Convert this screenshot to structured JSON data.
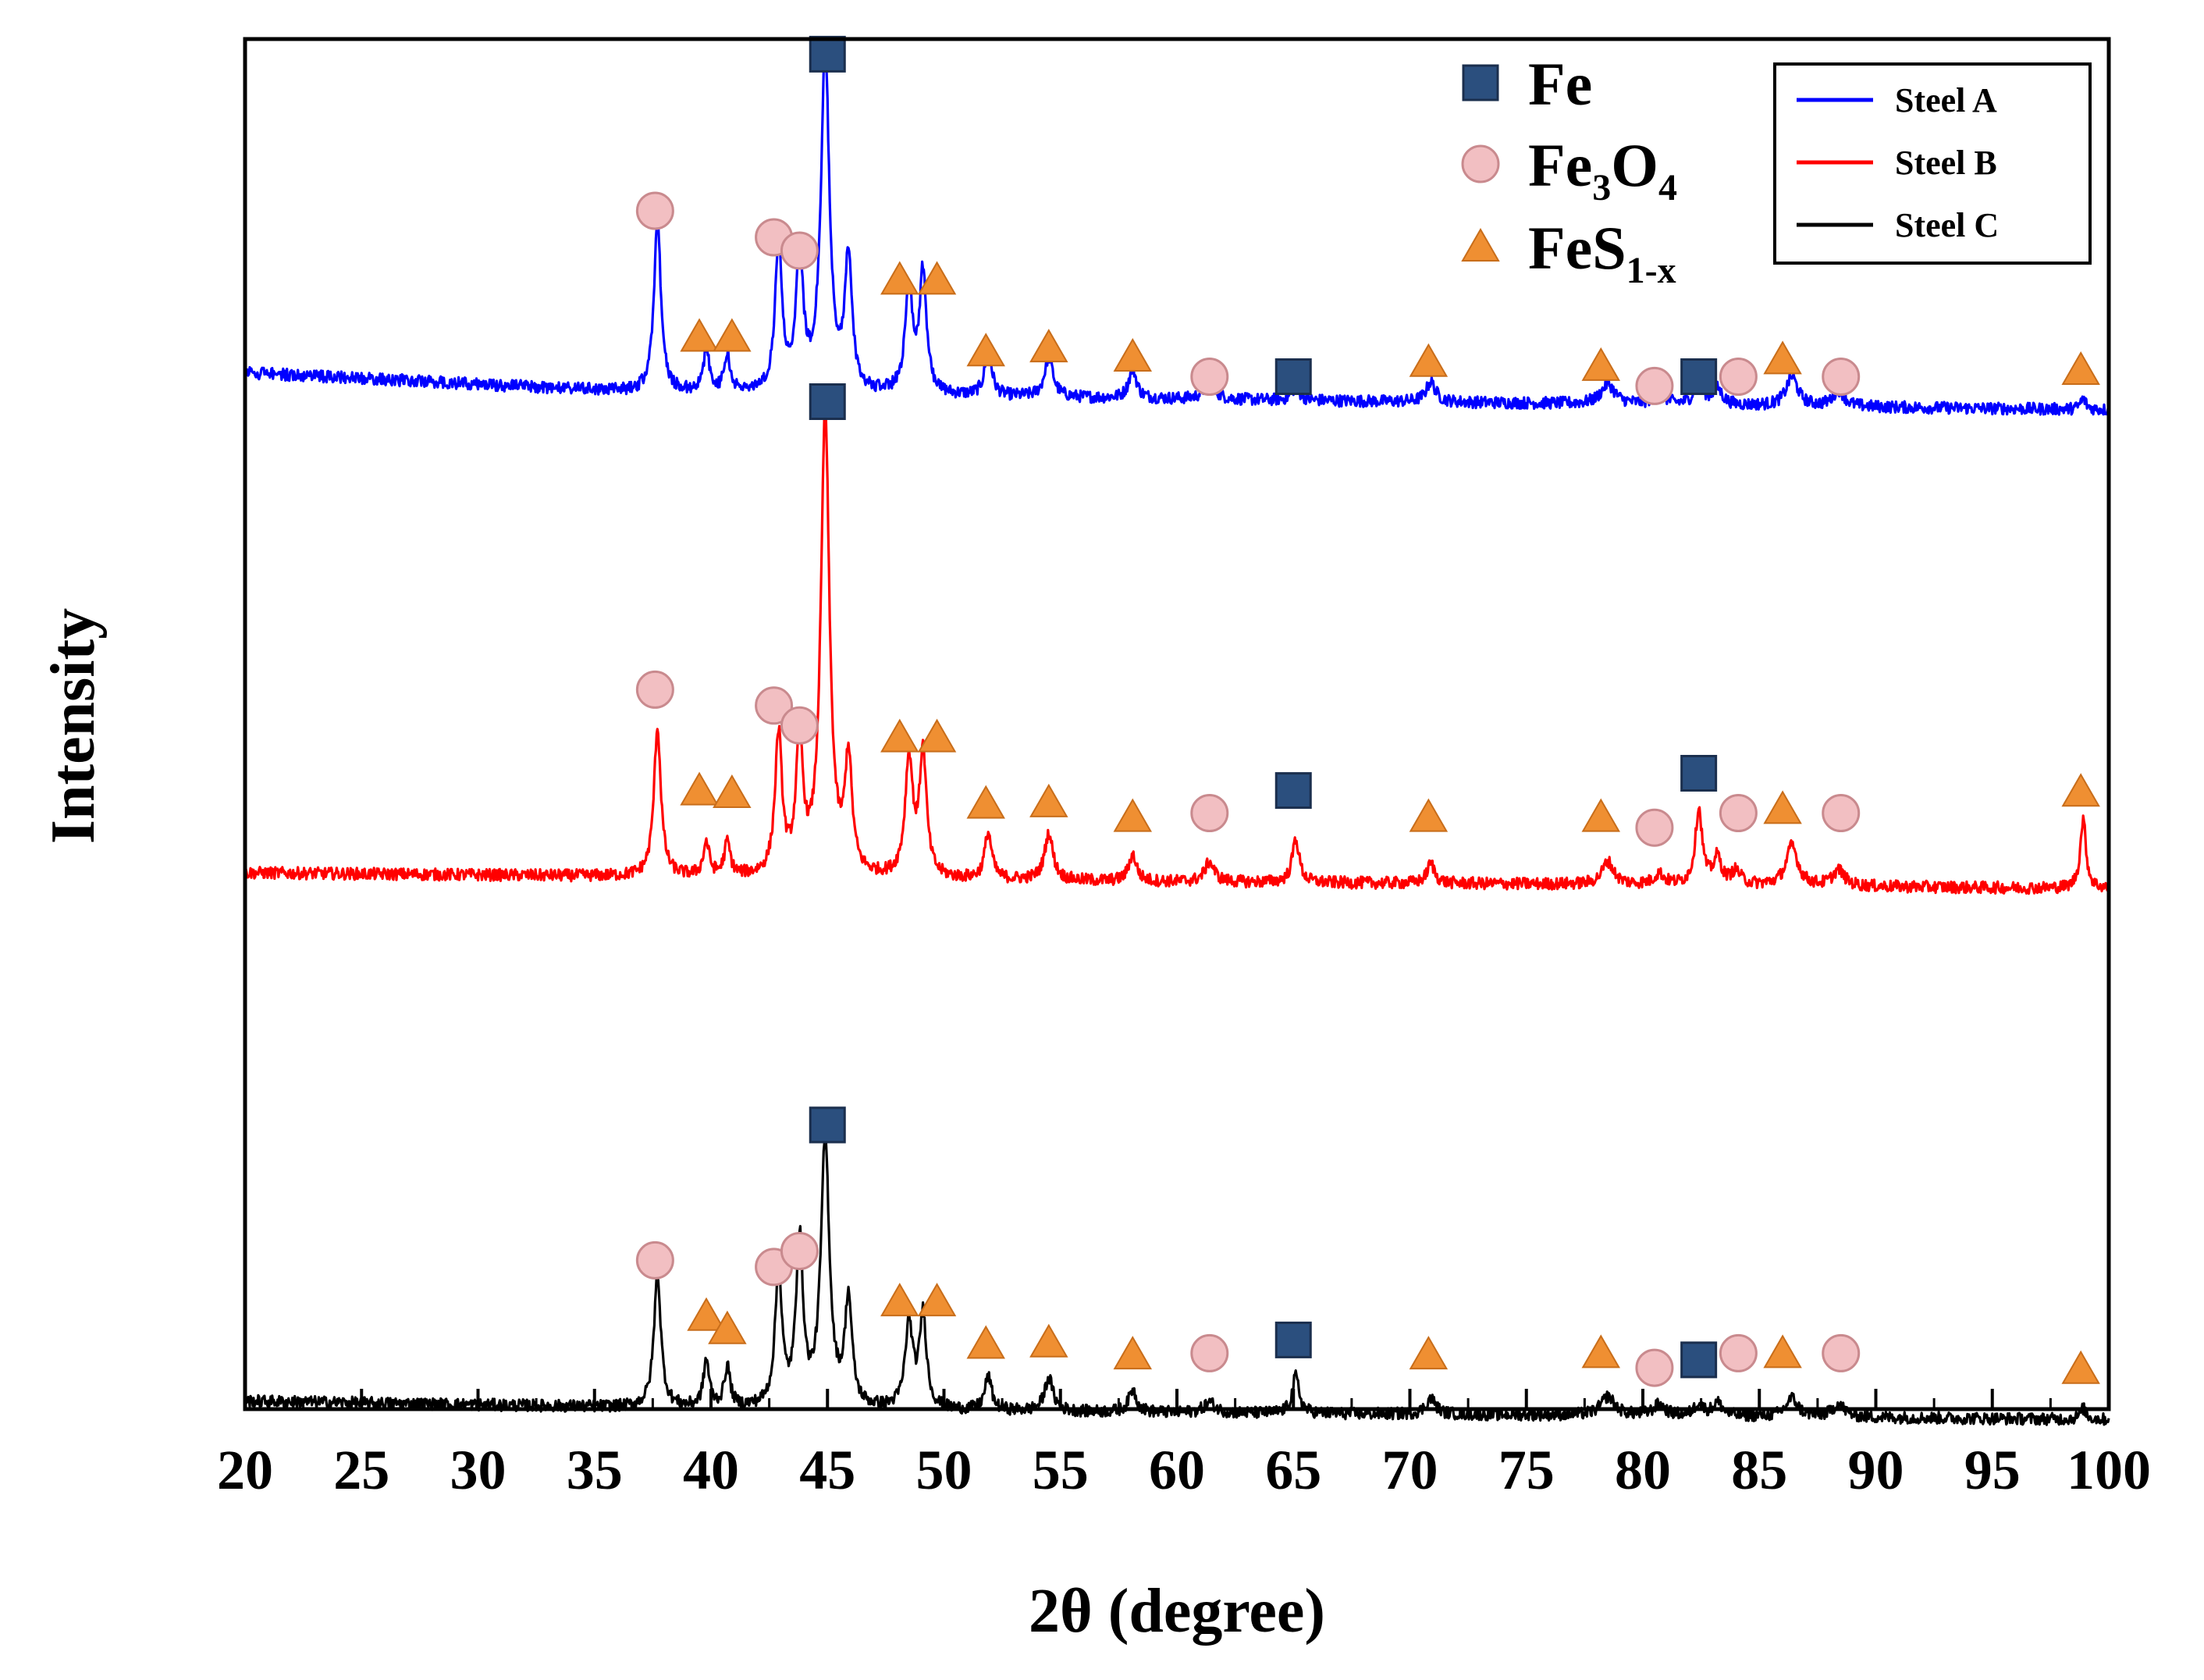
{
  "chart_data": {
    "type": "line",
    "title": "",
    "xlabel": "2θ (degree)",
    "ylabel": "Intensity",
    "xlim": [
      20,
      100
    ],
    "xticks": [
      20,
      25,
      30,
      35,
      40,
      45,
      50,
      55,
      60,
      65,
      70,
      75,
      80,
      85,
      90,
      95,
      100
    ],
    "yticks_shown": false,
    "legend_position": "top-right",
    "series": [
      {
        "name": "Steel A",
        "color": "#0000ff",
        "baseline": [
          [
            20,
            0.28
          ],
          [
            37,
            0.13
          ],
          [
            60,
            0.08
          ],
          [
            80,
            0.04
          ],
          [
            100,
            0.0
          ]
        ],
        "peaks": [
          [
            37.7,
            1.3,
            0.18
          ],
          [
            39.8,
            0.32,
            0.15
          ],
          [
            40.7,
            0.28,
            0.15
          ],
          [
            42.9,
            1.1,
            0.18
          ],
          [
            43.8,
            1.05,
            0.18
          ],
          [
            44.9,
            2.55,
            0.22
          ],
          [
            45.9,
            1.0,
            0.18
          ],
          [
            48.5,
            0.78,
            0.2
          ],
          [
            49.1,
            0.9,
            0.18
          ],
          [
            51.9,
            0.35,
            0.18
          ],
          [
            54.5,
            0.3,
            0.22
          ],
          [
            58.1,
            0.22,
            0.2
          ],
          [
            61.4,
            0.12,
            0.3
          ],
          [
            65.1,
            0.1,
            0.2
          ],
          [
            70.9,
            0.15,
            0.25
          ],
          [
            78.5,
            0.15,
            0.35
          ],
          [
            80.7,
            0.08,
            0.3
          ],
          [
            82.4,
            0.2,
            0.2
          ],
          [
            83.2,
            0.12,
            0.25
          ],
          [
            86.4,
            0.22,
            0.3
          ],
          [
            88.4,
            0.12,
            0.3
          ],
          [
            98.9,
            0.08,
            0.15
          ]
        ]
      },
      {
        "name": "Steel B",
        "color": "#ff0000",
        "baseline": [
          [
            20,
            0.1
          ],
          [
            37,
            0.07
          ],
          [
            60,
            0.03
          ],
          [
            80,
            0.01
          ],
          [
            100,
            -0.02
          ]
        ],
        "peaks": [
          [
            37.7,
            1.12,
            0.18
          ],
          [
            39.8,
            0.25,
            0.15
          ],
          [
            40.7,
            0.25,
            0.15
          ],
          [
            42.9,
            1.05,
            0.18
          ],
          [
            43.8,
            0.98,
            0.18
          ],
          [
            44.9,
            3.48,
            0.22
          ],
          [
            45.9,
            0.85,
            0.18
          ],
          [
            48.5,
            0.88,
            0.2
          ],
          [
            49.1,
            0.93,
            0.18
          ],
          [
            51.9,
            0.35,
            0.18
          ],
          [
            54.5,
            0.35,
            0.22
          ],
          [
            58.1,
            0.2,
            0.2
          ],
          [
            61.4,
            0.15,
            0.25
          ],
          [
            65.1,
            0.33,
            0.18
          ],
          [
            70.9,
            0.15,
            0.2
          ],
          [
            78.5,
            0.17,
            0.3
          ],
          [
            80.7,
            0.08,
            0.25
          ],
          [
            82.4,
            0.57,
            0.18
          ],
          [
            83.2,
            0.2,
            0.2
          ],
          [
            84.0,
            0.1,
            0.25
          ],
          [
            86.4,
            0.3,
            0.3
          ],
          [
            88.4,
            0.12,
            0.3
          ],
          [
            98.9,
            0.52,
            0.15
          ]
        ]
      },
      {
        "name": "Steel C",
        "color": "#000000",
        "baseline": [
          [
            20,
            0.12
          ],
          [
            37,
            0.07
          ],
          [
            60,
            0.03
          ],
          [
            80,
            0.01
          ],
          [
            100,
            -0.02
          ]
        ],
        "peaks": [
          [
            37.7,
            1.0,
            0.18
          ],
          [
            39.8,
            0.35,
            0.15
          ],
          [
            40.7,
            0.3,
            0.15
          ],
          [
            42.9,
            1.0,
            0.18
          ],
          [
            43.8,
            1.25,
            0.18
          ],
          [
            44.9,
            2.0,
            0.22
          ],
          [
            45.9,
            0.8,
            0.18
          ],
          [
            48.5,
            0.63,
            0.2
          ],
          [
            49.1,
            0.7,
            0.18
          ],
          [
            51.9,
            0.25,
            0.18
          ],
          [
            54.5,
            0.25,
            0.22
          ],
          [
            58.1,
            0.17,
            0.2
          ],
          [
            61.4,
            0.08,
            0.3
          ],
          [
            65.1,
            0.28,
            0.18
          ],
          [
            70.9,
            0.12,
            0.25
          ],
          [
            78.5,
            0.14,
            0.35
          ],
          [
            80.7,
            0.08,
            0.3
          ],
          [
            82.4,
            0.1,
            0.2
          ],
          [
            83.2,
            0.1,
            0.25
          ],
          [
            86.4,
            0.14,
            0.3
          ],
          [
            88.4,
            0.1,
            0.3
          ],
          [
            98.9,
            0.08,
            0.15
          ]
        ]
      }
    ],
    "phase_legend": [
      {
        "marker": "square",
        "label": "Fe",
        "color": "#2b4f7e"
      },
      {
        "marker": "circle",
        "label": "Fe",
        "sub1": "3",
        "mid": "O",
        "sub2": "4",
        "color": "#f2bfc2"
      },
      {
        "marker": "triangle",
        "label": "FeS",
        "sub1": "1-x",
        "color": "#ef8f32"
      }
    ],
    "peak_markers": [
      {
        "series": "Steel A",
        "phase": "Fe",
        "positions": [
          [
            45.0,
            2.68
          ],
          [
            65.0,
            0.25
          ],
          [
            82.4,
            0.25
          ]
        ]
      },
      {
        "series": "Steel A",
        "phase": "Fe3O4",
        "positions": [
          [
            37.6,
            1.5
          ],
          [
            42.7,
            1.3
          ],
          [
            43.8,
            1.2
          ],
          [
            61.4,
            0.25
          ],
          [
            80.5,
            0.18
          ],
          [
            84.1,
            0.25
          ],
          [
            88.5,
            0.25
          ]
        ]
      },
      {
        "series": "Steel A",
        "phase": "FeS1-x",
        "positions": [
          [
            39.5,
            0.55
          ],
          [
            40.9,
            0.55
          ],
          [
            48.1,
            0.98
          ],
          [
            49.7,
            0.98
          ],
          [
            51.8,
            0.44
          ],
          [
            54.5,
            0.47
          ],
          [
            58.1,
            0.4
          ],
          [
            70.8,
            0.36
          ],
          [
            78.2,
            0.33
          ],
          [
            86.0,
            0.38
          ],
          [
            98.8,
            0.3
          ]
        ]
      },
      {
        "series": "Steel B",
        "phase": "Fe",
        "positions": [
          [
            45.0,
            3.65
          ],
          [
            65.0,
            0.72
          ],
          [
            82.4,
            0.85
          ]
        ]
      },
      {
        "series": "Steel B",
        "phase": "Fe3O4",
        "positions": [
          [
            37.6,
            1.48
          ],
          [
            42.7,
            1.36
          ],
          [
            43.8,
            1.21
          ],
          [
            61.4,
            0.55
          ],
          [
            80.5,
            0.44
          ],
          [
            84.1,
            0.55
          ],
          [
            88.5,
            0.55
          ]
        ]
      },
      {
        "series": "Steel B",
        "phase": "FeS1-x",
        "positions": [
          [
            39.5,
            0.72
          ],
          [
            40.9,
            0.7
          ],
          [
            48.1,
            1.12
          ],
          [
            49.7,
            1.12
          ],
          [
            51.8,
            0.62
          ],
          [
            54.5,
            0.63
          ],
          [
            58.1,
            0.52
          ],
          [
            70.8,
            0.52
          ],
          [
            78.2,
            0.52
          ],
          [
            86.0,
            0.58
          ],
          [
            98.8,
            0.71
          ]
        ]
      },
      {
        "series": "Steel C",
        "phase": "Fe",
        "positions": [
          [
            45.0,
            2.2
          ],
          [
            65.0,
            0.58
          ],
          [
            82.4,
            0.43
          ]
        ]
      },
      {
        "series": "Steel C",
        "phase": "Fe3O4",
        "positions": [
          [
            37.6,
            1.18
          ],
          [
            42.7,
            1.13
          ],
          [
            43.8,
            1.25
          ],
          [
            61.4,
            0.48
          ],
          [
            80.5,
            0.37
          ],
          [
            84.1,
            0.48
          ],
          [
            88.5,
            0.48
          ]
        ]
      },
      {
        "series": "Steel C",
        "phase": "FeS1-x",
        "positions": [
          [
            39.8,
            0.76
          ],
          [
            40.7,
            0.66
          ],
          [
            48.1,
            0.87
          ],
          [
            49.7,
            0.87
          ],
          [
            51.8,
            0.55
          ],
          [
            54.5,
            0.56
          ],
          [
            58.1,
            0.47
          ],
          [
            70.8,
            0.47
          ],
          [
            78.2,
            0.48
          ],
          [
            86.0,
            0.48
          ],
          [
            98.8,
            0.36
          ]
        ]
      }
    ]
  }
}
